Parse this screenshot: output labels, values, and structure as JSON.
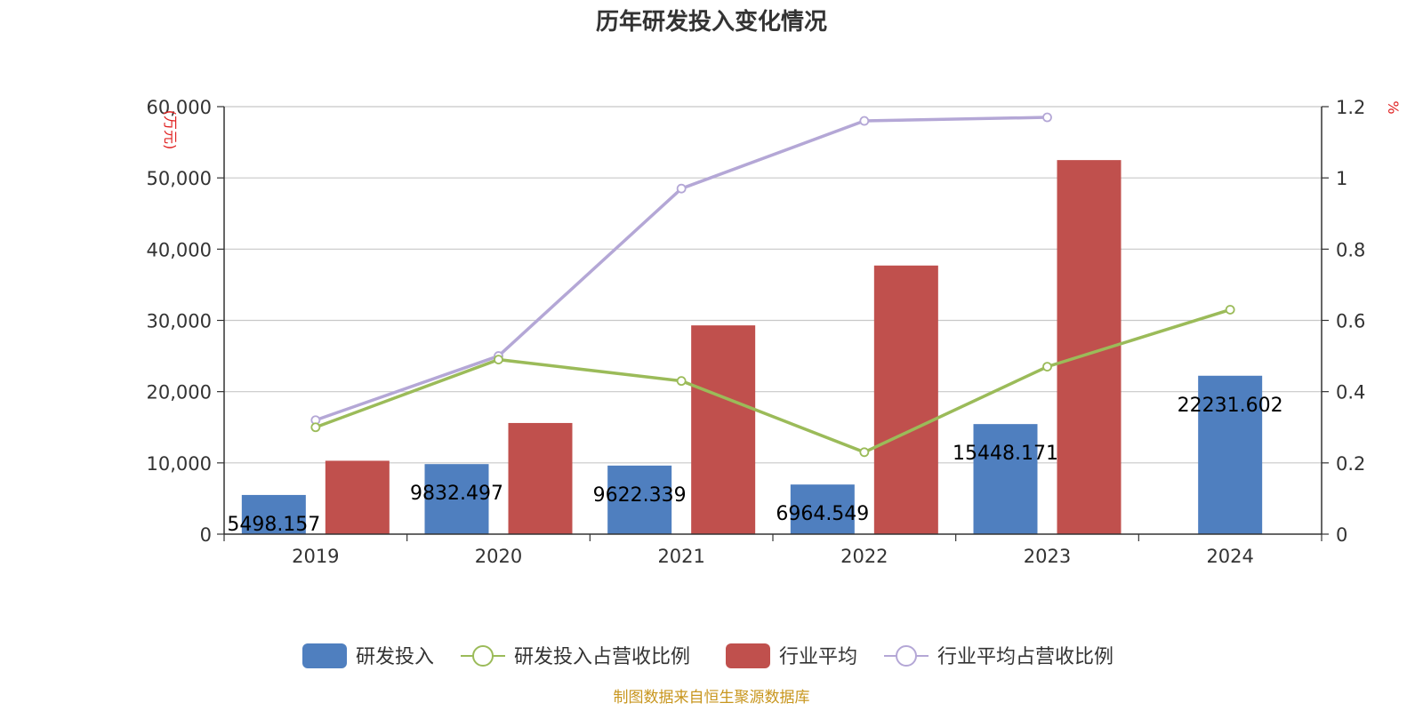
{
  "title": "历年研发投入变化情况",
  "footer": "制图数据来自恒生聚源数据库",
  "colors": {
    "rd_bar": "#4f7fbf",
    "industry_bar": "#c0504d",
    "rd_ratio_line": "#9bbb59",
    "industry_ratio_line": "#b4a7d6",
    "unit_text": "#e02020",
    "footer_text": "#c8961e"
  },
  "chart_data": {
    "type": "bar",
    "title": "历年研发投入变化情况",
    "categories": [
      "2019",
      "2020",
      "2021",
      "2022",
      "2023",
      "2024"
    ],
    "y_left": {
      "label": "(万元)",
      "min": 0,
      "max": 60000,
      "ticks": [
        "0",
        "10,000",
        "20,000",
        "30,000",
        "40,000",
        "50,000",
        "60,000"
      ]
    },
    "y_right": {
      "label": "%",
      "min": 0,
      "max": 1.2,
      "ticks": [
        "0",
        "0.2",
        "0.4",
        "0.6",
        "0.8",
        "1",
        "1.2"
      ]
    },
    "grid": true,
    "legend_position": "bottom",
    "series": [
      {
        "name": "研发投入",
        "type": "bar",
        "axis": "left",
        "values": [
          5498.157,
          9832.497,
          9622.339,
          6964.549,
          15448.171,
          22231.602
        ],
        "labels": [
          "5498.157",
          "9832.497",
          "9622.339",
          "6964.549",
          "15448.171",
          "22231.602"
        ]
      },
      {
        "name": "研发投入占营收比例",
        "type": "line",
        "axis": "right",
        "values": [
          0.3,
          0.49,
          0.43,
          0.23,
          0.47,
          0.63
        ]
      },
      {
        "name": "行业平均",
        "type": "bar",
        "axis": "left",
        "values": [
          10300,
          15600,
          29300,
          37700,
          52500,
          null
        ]
      },
      {
        "name": "行业平均占营收比例",
        "type": "line",
        "axis": "right",
        "values": [
          0.32,
          0.5,
          0.97,
          1.16,
          1.17,
          null
        ]
      }
    ]
  }
}
